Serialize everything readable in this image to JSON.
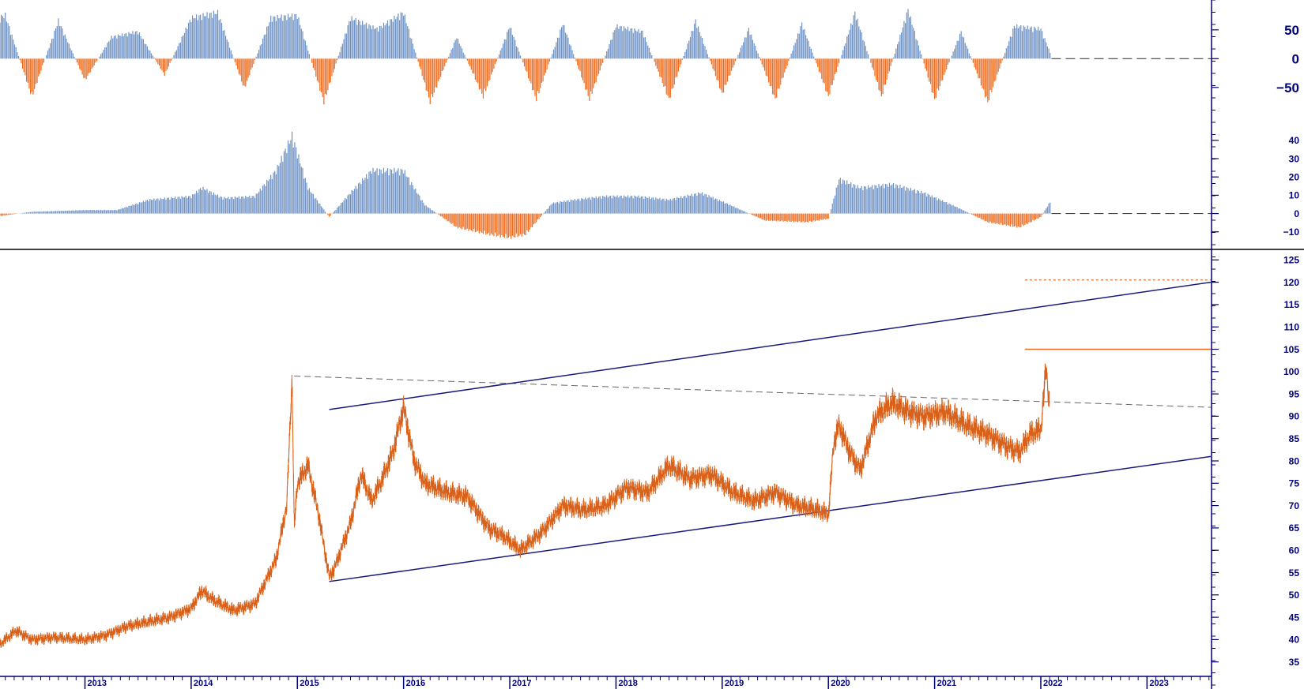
{
  "colors": {
    "positive": "#6f92c4",
    "negative": "#f06a1e",
    "price": "#d9611a",
    "trend": "#1a1a7a",
    "axis": "#00007a",
    "resistance": "#f06a1e",
    "dashed": "#666666"
  },
  "chart_data": [
    {
      "id": "oscillator-top",
      "type": "bar",
      "yticks": [
        50,
        0,
        -50
      ],
      "ylim": [
        -90,
        95
      ],
      "zero_line_style": "dashed",
      "note": "Histogram oscillator, positive bars blue, negative bars orange",
      "x": [
        2012.0,
        2012.25,
        2012.5,
        2012.75,
        2013.0,
        2013.25,
        2013.5,
        2013.75,
        2014.0,
        2014.25,
        2014.5,
        2014.75,
        2015.0,
        2015.25,
        2015.5,
        2015.75,
        2016.0,
        2016.25,
        2016.5,
        2016.75,
        2017.0,
        2017.25,
        2017.5,
        2017.75,
        2018.0,
        2018.25,
        2018.5,
        2018.75,
        2019.0,
        2019.25,
        2019.5,
        2019.75,
        2020.0,
        2020.25,
        2020.5,
        2020.75,
        2021.0,
        2021.25,
        2021.5,
        2021.75,
        2022.0,
        2022.1
      ],
      "values": [
        60,
        80,
        -70,
        70,
        -40,
        40,
        50,
        -30,
        75,
        85,
        -55,
        75,
        80,
        -80,
        75,
        55,
        85,
        -80,
        40,
        -70,
        60,
        -75,
        65,
        -75,
        60,
        50,
        -75,
        70,
        -65,
        55,
        -75,
        65,
        -70,
        85,
        -70,
        90,
        -75,
        50,
        -80,
        60,
        55,
        5
      ]
    },
    {
      "id": "oscillator-middle",
      "type": "bar",
      "yticks": [
        40,
        30,
        20,
        10,
        0,
        -10
      ],
      "ylim": [
        -17,
        52
      ],
      "zero_line_style": "dashed",
      "x": [
        2012.0,
        2012.5,
        2013.0,
        2013.3,
        2013.6,
        2014.0,
        2014.1,
        2014.3,
        2014.6,
        2014.8,
        2014.95,
        2015.1,
        2015.3,
        2015.5,
        2015.7,
        2016.0,
        2016.2,
        2016.5,
        2016.8,
        2017.0,
        2017.15,
        2017.4,
        2017.6,
        2017.9,
        2018.2,
        2018.5,
        2018.8,
        2019.0,
        2019.4,
        2019.8,
        2020.0,
        2020.1,
        2020.3,
        2020.6,
        2020.9,
        2021.2,
        2021.5,
        2021.8,
        2022.0,
        2022.1
      ],
      "values": [
        -3,
        1,
        2,
        2,
        8,
        10,
        15,
        9,
        10,
        25,
        45,
        15,
        -2,
        12,
        25,
        25,
        5,
        -8,
        -12,
        -14,
        -12,
        6,
        8,
        10,
        10,
        8,
        12,
        7,
        -4,
        -5,
        -3,
        20,
        15,
        17,
        12,
        4,
        -5,
        -8,
        -2,
        8
      ]
    },
    {
      "id": "price-chart",
      "type": "line",
      "xlabel": "",
      "ylabel": "",
      "ylim": [
        33,
        127
      ],
      "yticks": [
        125,
        120,
        115,
        110,
        105,
        100,
        95,
        90,
        85,
        80,
        75,
        70,
        65,
        60,
        55,
        50,
        45,
        40,
        35
      ],
      "x_categories": [
        "2013",
        "2014",
        "2015",
        "2016",
        "2017",
        "2018",
        "2019",
        "2020",
        "2021",
        "2022",
        "2023"
      ],
      "xlim": [
        2012.2,
        2023.6
      ],
      "series": [
        {
          "x": [
            2012.2,
            2012.35,
            2012.5,
            2012.7,
            2013.0,
            2013.2,
            2013.4,
            2013.6,
            2013.8,
            2014.0,
            2014.1,
            2014.2,
            2014.4,
            2014.6,
            2014.8,
            2014.9,
            2014.95,
            2014.97,
            2015.0,
            2015.1,
            2015.2,
            2015.3,
            2015.35,
            2015.5,
            2015.6,
            2015.7,
            2015.8,
            2015.9,
            2016.0,
            2016.1,
            2016.2,
            2016.4,
            2016.6,
            2016.8,
            2016.95,
            2017.1,
            2017.3,
            2017.5,
            2017.7,
            2017.9,
            2018.1,
            2018.3,
            2018.5,
            2018.7,
            2018.9,
            2019.1,
            2019.3,
            2019.5,
            2019.7,
            2019.9,
            2020.0,
            2020.05,
            2020.1,
            2020.2,
            2020.3,
            2020.45,
            2020.6,
            2020.75,
            2020.9,
            2021.1,
            2021.3,
            2021.5,
            2021.7,
            2021.8,
            2021.9,
            2022.0,
            2022.05,
            2022.08
          ],
          "values": [
            39,
            42,
            40,
            40.5,
            40,
            41,
            43,
            44,
            45,
            47,
            51,
            49,
            46.5,
            48,
            58,
            70,
            99,
            65,
            75,
            79,
            68,
            54,
            56,
            66,
            77,
            71,
            76,
            82,
            92,
            80,
            75,
            73,
            72,
            65,
            63,
            60,
            64,
            70,
            69,
            70,
            74,
            73,
            79,
            76,
            77,
            73,
            71,
            73,
            70,
            69,
            68,
            84,
            88,
            82,
            78,
            90,
            93,
            91,
            90,
            91,
            88,
            86,
            83,
            82,
            86,
            87,
            101,
            93
          ]
        }
      ],
      "annotations": {
        "resistance_dotted": 120.5,
        "resistance_solid": 105,
        "upper_channel": {
          "x": [
            2015.3,
            2023.6
          ],
          "y": [
            91.5,
            120
          ]
        },
        "lower_channel": {
          "x": [
            2015.3,
            2023.6
          ],
          "y": [
            53,
            81
          ]
        },
        "dashed_trend": {
          "x": [
            2014.97,
            2023.6
          ],
          "y": [
            99,
            92
          ]
        }
      }
    }
  ]
}
